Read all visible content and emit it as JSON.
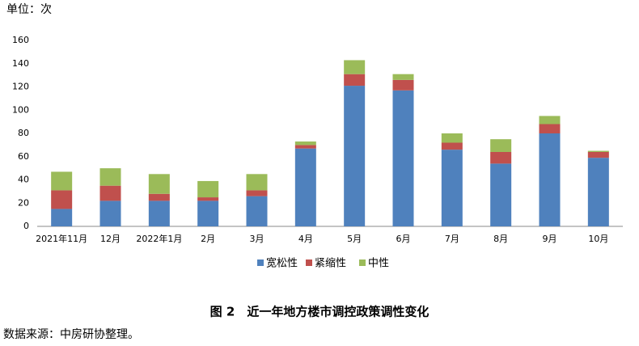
{
  "chart_data": {
    "type": "stacked_bar",
    "unit_label": "单位：次",
    "categories": [
      "2021年11月",
      "12月",
      "2022年1月",
      "2月",
      "3月",
      "4月",
      "5月",
      "6月",
      "7月",
      "8月",
      "9月",
      "10月"
    ],
    "series": [
      {
        "name": "宽松性",
        "color": "#4f81bd",
        "values": [
          15,
          22,
          22,
          22,
          26,
          67,
          121,
          117,
          66,
          54,
          80,
          59
        ]
      },
      {
        "name": "紧缩性",
        "color": "#c0504d",
        "values": [
          16,
          13,
          6,
          3,
          5,
          3,
          10,
          9,
          6,
          10,
          8,
          5
        ]
      },
      {
        "name": "中性",
        "color": "#9bbb59",
        "values": [
          16,
          15,
          17,
          14,
          14,
          3,
          12,
          5,
          8,
          11,
          7,
          1
        ]
      }
    ],
    "ylim": [
      0,
      160
    ],
    "yticks": [
      0,
      20,
      40,
      60,
      80,
      100,
      120,
      140,
      160
    ],
    "caption": "图 2　近一年地方楼市调控政策调性变化",
    "source": "数据来源：中房研协整理。"
  }
}
